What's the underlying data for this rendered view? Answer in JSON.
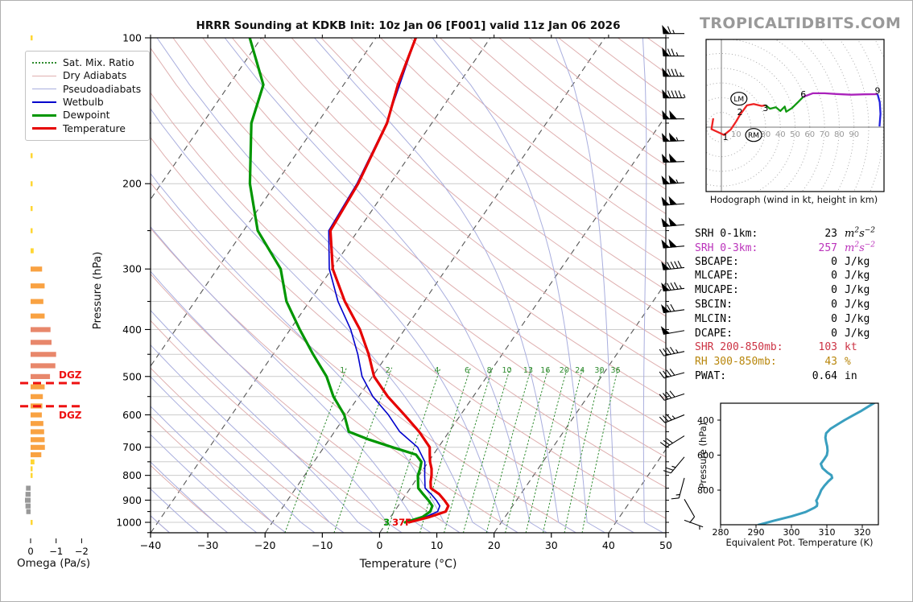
{
  "title": "HRRR Sounding at KDKB Init: 10z Jan 06 [F001] valid 11z Jan 06 2026",
  "watermark": "TROPICALTIDBITS.COM",
  "chart_data": [
    {
      "type": "line",
      "name": "skew_t_sounding",
      "xlabel": "Temperature (°C)",
      "ylabel": "Pressure (hPa)",
      "xlim": [
        -40,
        50
      ],
      "x_ticks": [
        -40,
        -30,
        -20,
        -10,
        0,
        10,
        20,
        30,
        40,
        50
      ],
      "plim": [
        100,
        1050
      ],
      "p_ticks": [
        100,
        200,
        300,
        400,
        500,
        600,
        700,
        800,
        900,
        1000
      ],
      "grid": "on",
      "mixing_ratio_values": [
        1,
        2,
        4,
        6,
        8,
        10,
        13,
        16,
        20,
        24,
        30,
        36
      ],
      "surface_dewpoint_label": "3",
      "surface_temp_label": "37F",
      "legend_position": "upper-left",
      "legend": [
        {
          "label": "Sat. Mix. Ratio",
          "color": "#2e8b2e",
          "style": "dotted",
          "width": 2
        },
        {
          "label": "Dry Adiabats",
          "color": "#dfb0b0",
          "style": "solid",
          "width": 1.5
        },
        {
          "label": "Pseudoadiabats",
          "color": "#a9aede",
          "style": "solid",
          "width": 1.5
        },
        {
          "label": "Wetbulb",
          "color": "#0000cc",
          "style": "solid",
          "width": 2
        },
        {
          "label": "Dewpoint",
          "color": "#009600",
          "style": "solid",
          "width": 3.5
        },
        {
          "label": "Temperature",
          "color": "#e60000",
          "style": "solid",
          "width": 3.5
        }
      ],
      "series": [
        {
          "name": "temperature",
          "color": "#e60000",
          "width": 3.2,
          "points": [
            [
              1000,
              3.9
            ],
            [
              975,
              6.8
            ],
            [
              950,
              9.0
            ],
            [
              925,
              8.8
            ],
            [
              900,
              7.4
            ],
            [
              875,
              5.8
            ],
            [
              850,
              3.6
            ],
            [
              825,
              2.8
            ],
            [
              800,
              2.2
            ],
            [
              775,
              1.4
            ],
            [
              750,
              0.3
            ],
            [
              725,
              -0.6
            ],
            [
              700,
              -1.5
            ],
            [
              650,
              -5.2
            ],
            [
              600,
              -9.8
            ],
            [
              550,
              -14.9
            ],
            [
              500,
              -19.7
            ],
            [
              450,
              -23.3
            ],
            [
              400,
              -27.8
            ],
            [
              350,
              -33.8
            ],
            [
              300,
              -39.8
            ],
            [
              250,
              -44.8
            ],
            [
              200,
              -45.6
            ],
            [
              150,
              -47.8
            ],
            [
              125,
              -50.5
            ],
            [
              100,
              -53.0
            ]
          ]
        },
        {
          "name": "wetbulb",
          "color": "#0000cc",
          "width": 1.6,
          "points": [
            [
              1000,
              3.5
            ],
            [
              975,
              6.1
            ],
            [
              950,
              7.6
            ],
            [
              925,
              7.3
            ],
            [
              900,
              6.0
            ],
            [
              875,
              4.4
            ],
            [
              850,
              2.6
            ],
            [
              800,
              1.0
            ],
            [
              750,
              -0.6
            ],
            [
              700,
              -3.6
            ],
            [
              650,
              -8.6
            ],
            [
              600,
              -12.6
            ],
            [
              550,
              -17.5
            ],
            [
              500,
              -21.8
            ],
            [
              450,
              -25.2
            ],
            [
              400,
              -29.4
            ],
            [
              350,
              -35.0
            ],
            [
              300,
              -40.4
            ],
            [
              250,
              -45.1
            ],
            [
              200,
              -45.8
            ],
            [
              150,
              -47.9
            ],
            [
              100,
              -53.0
            ]
          ]
        },
        {
          "name": "dewpoint",
          "color": "#009600",
          "width": 3.2,
          "points": [
            [
              1000,
              3.2
            ],
            [
              975,
              5.6
            ],
            [
              950,
              6.3
            ],
            [
              925,
              6.0
            ],
            [
              900,
              4.6
            ],
            [
              875,
              3.0
            ],
            [
              850,
              1.4
            ],
            [
              800,
              -0.2
            ],
            [
              775,
              -0.6
            ],
            [
              750,
              -1.2
            ],
            [
              725,
              -3.0
            ],
            [
              700,
              -8.0
            ],
            [
              675,
              -13.0
            ],
            [
              650,
              -17.5
            ],
            [
              600,
              -20.3
            ],
            [
              550,
              -24.4
            ],
            [
              500,
              -28.0
            ],
            [
              450,
              -33.0
            ],
            [
              400,
              -38.3
            ],
            [
              350,
              -44.0
            ],
            [
              300,
              -48.9
            ],
            [
              250,
              -57.5
            ],
            [
              200,
              -64.5
            ],
            [
              150,
              -71.5
            ],
            [
              125,
              -74.0
            ],
            [
              100,
              -82.0
            ]
          ]
        }
      ],
      "wind_barbs_kt": [
        [
          98,
          65,
          270
        ],
        [
          109,
          75,
          270
        ],
        [
          120,
          85,
          270
        ],
        [
          133,
          95,
          270
        ],
        [
          147,
          100,
          270
        ],
        [
          163,
          105,
          268
        ],
        [
          180,
          100,
          268
        ],
        [
          199,
          105,
          266
        ],
        [
          220,
          100,
          266
        ],
        [
          243,
          100,
          265
        ],
        [
          269,
          100,
          265
        ],
        [
          298,
          90,
          264
        ],
        [
          329,
          85,
          263
        ],
        [
          364,
          70,
          262
        ],
        [
          402,
          50,
          260
        ],
        [
          444,
          45,
          258
        ],
        [
          491,
          40,
          255
        ],
        [
          543,
          40,
          252
        ],
        [
          600,
          35,
          248
        ],
        [
          663,
          30,
          238
        ],
        [
          733,
          25,
          220
        ],
        [
          810,
          15,
          195
        ],
        [
          896,
          10,
          150
        ],
        [
          990,
          5,
          110
        ]
      ]
    },
    {
      "type": "bar",
      "name": "omega_profile",
      "xlabel": "Omega (Pa/s)",
      "x_ticks": [
        0,
        -1,
        -2
      ],
      "dgz_label": "DGZ",
      "dgz_color": "#ee1111",
      "dgz_pressures": [
        516,
        576
      ],
      "palette": {
        "weak": "#ffd633",
        "moderate": "#f9a242",
        "strong": "#e8876b",
        "positive": "#999999"
      },
      "bars": [
        [
          100,
          -0.03
        ],
        [
          125,
          -0.05
        ],
        [
          150,
          -0.05
        ],
        [
          175,
          -0.04
        ],
        [
          200,
          -0.05
        ],
        [
          225,
          -0.05
        ],
        [
          250,
          -0.07
        ],
        [
          275,
          -0.12
        ],
        [
          300,
          -0.45
        ],
        [
          325,
          -0.55
        ],
        [
          350,
          -0.5
        ],
        [
          375,
          -0.55
        ],
        [
          400,
          -0.78
        ],
        [
          425,
          -0.82
        ],
        [
          450,
          -1.0
        ],
        [
          475,
          -0.97
        ],
        [
          500,
          -0.76
        ],
        [
          525,
          -0.55
        ],
        [
          550,
          -0.48
        ],
        [
          575,
          -0.46
        ],
        [
          600,
          -0.44
        ],
        [
          625,
          -0.5
        ],
        [
          650,
          -0.53
        ],
        [
          675,
          -0.55
        ],
        [
          700,
          -0.56
        ],
        [
          725,
          -0.42
        ],
        [
          750,
          -0.15
        ],
        [
          775,
          -0.07
        ],
        [
          800,
          -0.05
        ],
        [
          850,
          0.18
        ],
        [
          875,
          0.2
        ],
        [
          900,
          0.22
        ],
        [
          925,
          0.2
        ],
        [
          950,
          0.17
        ],
        [
          1000,
          -0.07
        ]
      ]
    },
    {
      "type": "line",
      "name": "hodograph",
      "caption": "Hodograph (wind in kt, height in km)",
      "ring_step_kt": 10,
      "ring_labels": [
        10,
        20,
        30,
        40,
        50,
        60,
        70,
        80,
        90
      ],
      "segments": [
        {
          "name": "0-1km",
          "color": "#ee2222",
          "points": [
            [
              -5.5,
              6
            ],
            [
              -6.7,
              -1.3
            ],
            [
              1.8,
              -5.3
            ],
            [
              6.4,
              -1.6
            ],
            [
              10,
              3.8
            ]
          ]
        },
        {
          "name": "1-3km",
          "color": "#ee2222",
          "points": [
            [
              10,
              3.8
            ],
            [
              12.7,
              8.4
            ],
            [
              17.3,
              14.8
            ],
            [
              21.9,
              15.7
            ],
            [
              27.3,
              14.4
            ],
            [
              30,
              14.8
            ]
          ]
        },
        {
          "name": "3-6km",
          "color": "#119911",
          "points": [
            [
              30,
              14.8
            ],
            [
              33,
              12.5
            ],
            [
              37,
              13.5
            ],
            [
              40,
              11
            ],
            [
              43,
              14
            ],
            [
              44,
              10.5
            ],
            [
              48,
              13
            ],
            [
              52,
              17
            ],
            [
              55.6,
              20.6
            ]
          ]
        },
        {
          "name": "6-9km",
          "color": "#aa22bb",
          "points": [
            [
              55.6,
              20.6
            ],
            [
              62,
              23
            ],
            [
              70,
              23
            ],
            [
              78,
              22.5
            ],
            [
              88,
              22
            ],
            [
              97,
              22.3
            ],
            [
              106,
              22.4
            ]
          ]
        },
        {
          "name": "9km-up",
          "color": "#2222dd",
          "points": [
            [
              106,
              22.4
            ],
            [
              107.5,
              17
            ],
            [
              108,
              9
            ],
            [
              107.3,
              0.5
            ]
          ]
        }
      ],
      "height_labels": [
        {
          "text": "1",
          "u": 2.7,
          "v": -6.5
        },
        {
          "text": "2",
          "u": 12.6,
          "v": 10.4
        },
        {
          "text": "3",
          "u": 30,
          "v": 13.2
        },
        {
          "text": "6",
          "u": 55.6,
          "v": 22.5
        },
        {
          "text": "9",
          "u": 106,
          "v": 25
        }
      ],
      "markers": [
        {
          "text": "LM",
          "u": 11.9,
          "v": 19.3
        },
        {
          "text": "RM",
          "u": 21.9,
          "v": -5.3
        }
      ]
    },
    {
      "type": "table",
      "name": "indices",
      "rows": [
        {
          "label": "SRH 0-1km:",
          "value": "23",
          "unit": "m2s-2",
          "unit_type": "math",
          "color": "#000000"
        },
        {
          "label": "SRH 0-3km:",
          "value": "257",
          "unit": "m2s-2",
          "unit_type": "math",
          "color": "#bb33bb"
        },
        {
          "label": "SBCAPE:",
          "value": "0",
          "unit": "J/kg",
          "unit_type": "plain",
          "color": "#000000"
        },
        {
          "label": "MLCAPE:",
          "value": "0",
          "unit": "J/kg",
          "unit_type": "plain",
          "color": "#000000"
        },
        {
          "label": "MUCAPE:",
          "value": "0",
          "unit": "J/kg",
          "unit_type": "plain",
          "color": "#000000"
        },
        {
          "label": "SBCIN:",
          "value": "0",
          "unit": "J/kg",
          "unit_type": "plain",
          "color": "#000000"
        },
        {
          "label": "MLCIN:",
          "value": "0",
          "unit": "J/kg",
          "unit_type": "plain",
          "color": "#000000"
        },
        {
          "label": "DCAPE:",
          "value": "0",
          "unit": "J/kg",
          "unit_type": "plain",
          "color": "#000000"
        },
        {
          "label": "SHR 200-850mb:",
          "value": "103",
          "unit": "kt",
          "unit_type": "plain",
          "color": "#cc3344"
        },
        {
          "label": "RH 300-850mb:",
          "value": "43",
          "unit": "%",
          "unit_type": "plain",
          "color": "#b8860b"
        },
        {
          "label": "PWAT:",
          "value": "0.64",
          "unit": "in",
          "unit_type": "plain",
          "color": "#000000"
        }
      ]
    },
    {
      "type": "line",
      "name": "equivalent_potential_temperature",
      "xlabel": "Equivalent Pot. Temperature (K)",
      "ylabel": "Pressure (hPa)",
      "x_ticks": [
        280,
        290,
        300,
        310,
        320
      ],
      "p_ticks": [
        400,
        600,
        800
      ],
      "color": "#3a9fbf",
      "points": [
        [
          1000,
          290.5
        ],
        [
          975,
          295
        ],
        [
          950,
          300
        ],
        [
          925,
          304
        ],
        [
          900,
          306.5
        ],
        [
          890,
          307.2
        ],
        [
          875,
          307.3
        ],
        [
          860,
          307.0
        ],
        [
          850,
          307.3
        ],
        [
          825,
          307.9
        ],
        [
          800,
          308.4
        ],
        [
          775,
          309.3
        ],
        [
          750,
          310.4
        ],
        [
          730,
          311.5
        ],
        [
          715,
          311.3
        ],
        [
          700,
          310.2
        ],
        [
          675,
          308.8
        ],
        [
          650,
          308.3
        ],
        [
          625,
          309.2
        ],
        [
          600,
          310.0
        ],
        [
          575,
          310.2
        ],
        [
          550,
          310.1
        ],
        [
          525,
          309.8
        ],
        [
          500,
          309.6
        ],
        [
          475,
          309.8
        ],
        [
          450,
          311
        ],
        [
          425,
          313
        ],
        [
          400,
          315
        ],
        [
          375,
          317.2
        ],
        [
          350,
          319.5
        ],
        [
          325,
          321.5
        ],
        [
          300,
          323.5
        ]
      ]
    }
  ]
}
